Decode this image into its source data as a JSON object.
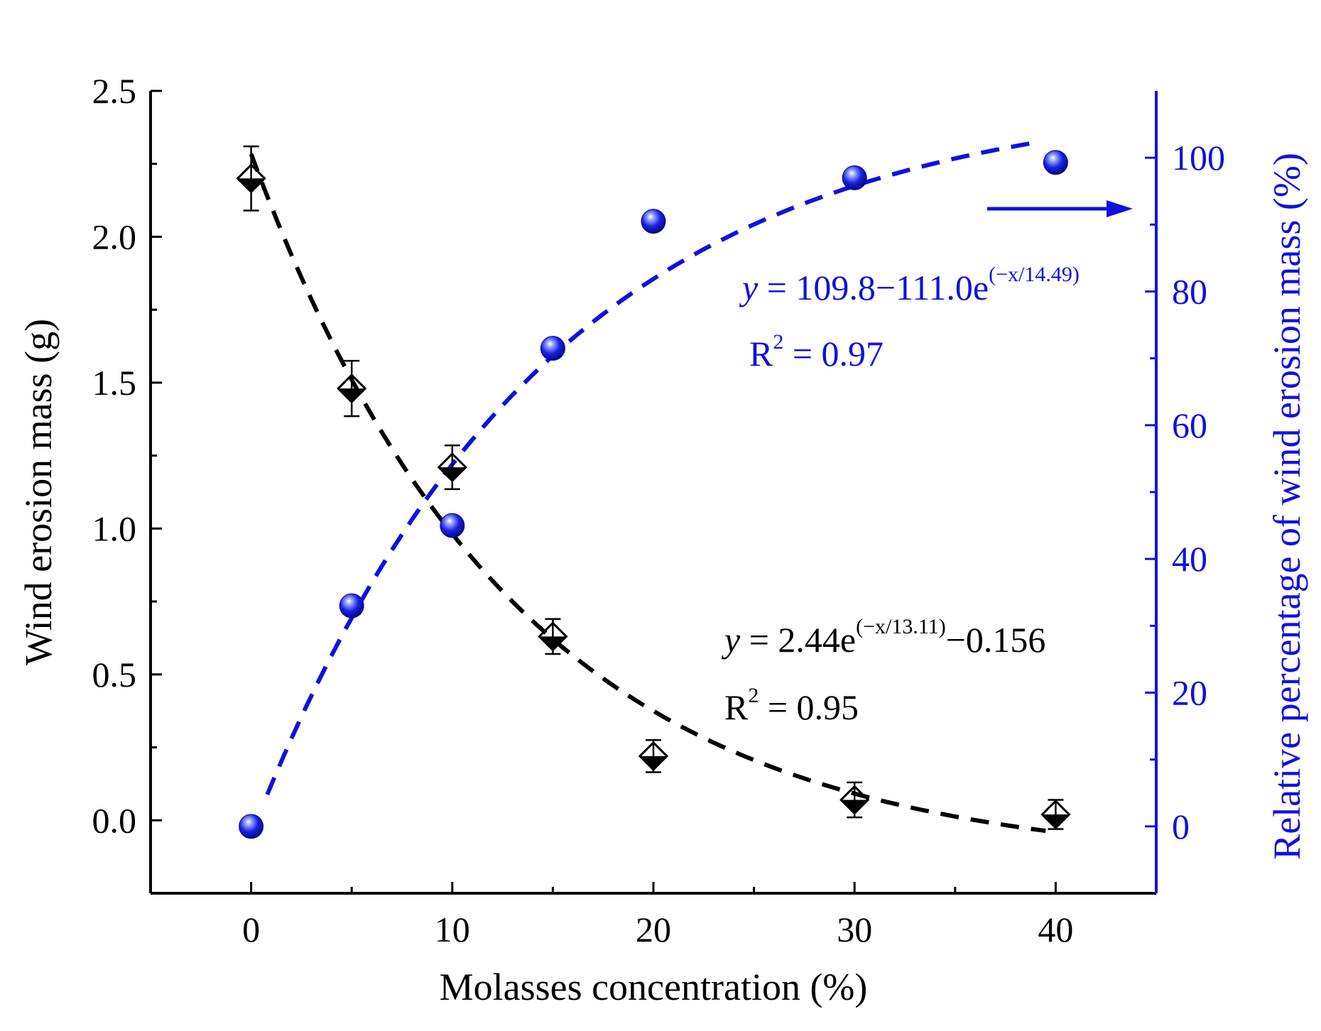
{
  "chart_data": {
    "type": "scatter",
    "xlabel": "Molasses concentration (%)",
    "ylabel_left": "Wind erosion mass (g)",
    "ylabel_right": "Relative percentage of wind erosion mass (%)",
    "xlim": [
      -5,
      45
    ],
    "ylim_left": [
      -0.25,
      2.5
    ],
    "ylim_right": [
      -10,
      110
    ],
    "x_ticks": [
      "0",
      "10",
      "20",
      "30",
      "40"
    ],
    "y_left_ticks": [
      "0.0",
      "0.5",
      "1.0",
      "1.5",
      "2.0",
      "2.5"
    ],
    "y_right_ticks": [
      "0",
      "20",
      "40",
      "60",
      "80",
      "100"
    ],
    "colors": {
      "left_series": "#000000",
      "right_series": "#1010e0"
    },
    "series": [
      {
        "name": "Wind erosion mass",
        "axis": "left",
        "marker": "diamond",
        "x": [
          0,
          5,
          10,
          15,
          20,
          30,
          40
        ],
        "values": [
          2.2,
          1.48,
          1.21,
          0.63,
          0.22,
          0.07,
          0.02
        ],
        "error": [
          0.11,
          0.095,
          0.075,
          0.06,
          0.055,
          0.06,
          0.05
        ],
        "fit": {
          "a": 2.44,
          "t": 13.11,
          "c": -0.156,
          "from": 0,
          "to": 39.5
        },
        "equation": {
          "y": "y",
          "mid": " = 2.44e",
          "exp": "(−x/13.11)",
          "tail": "−0.156"
        },
        "r2": {
          "R": "R",
          "two": "2",
          "rest": " = 0.95"
        }
      },
      {
        "name": "Relative percentage of wind erosion mass",
        "axis": "right",
        "marker": "sphere",
        "x": [
          0,
          5,
          10,
          15,
          20,
          30,
          40
        ],
        "values": [
          0,
          33,
          45,
          71.5,
          90.5,
          97,
          99.3
        ],
        "fit": {
          "a": 109.8,
          "b": 111.0,
          "t": 14.49,
          "from": 0.8,
          "to": 39
        },
        "equation": {
          "y": "y",
          "mid": " = 109.8−111.0e",
          "exp": "(−x/14.49)",
          "tail": ""
        },
        "r2": {
          "R": "R",
          "two": "2",
          "rest": " = 0.97"
        }
      }
    ],
    "annotations": [
      {
        "type": "arrow",
        "direction": "right",
        "meaning": "points to right axis"
      }
    ]
  }
}
